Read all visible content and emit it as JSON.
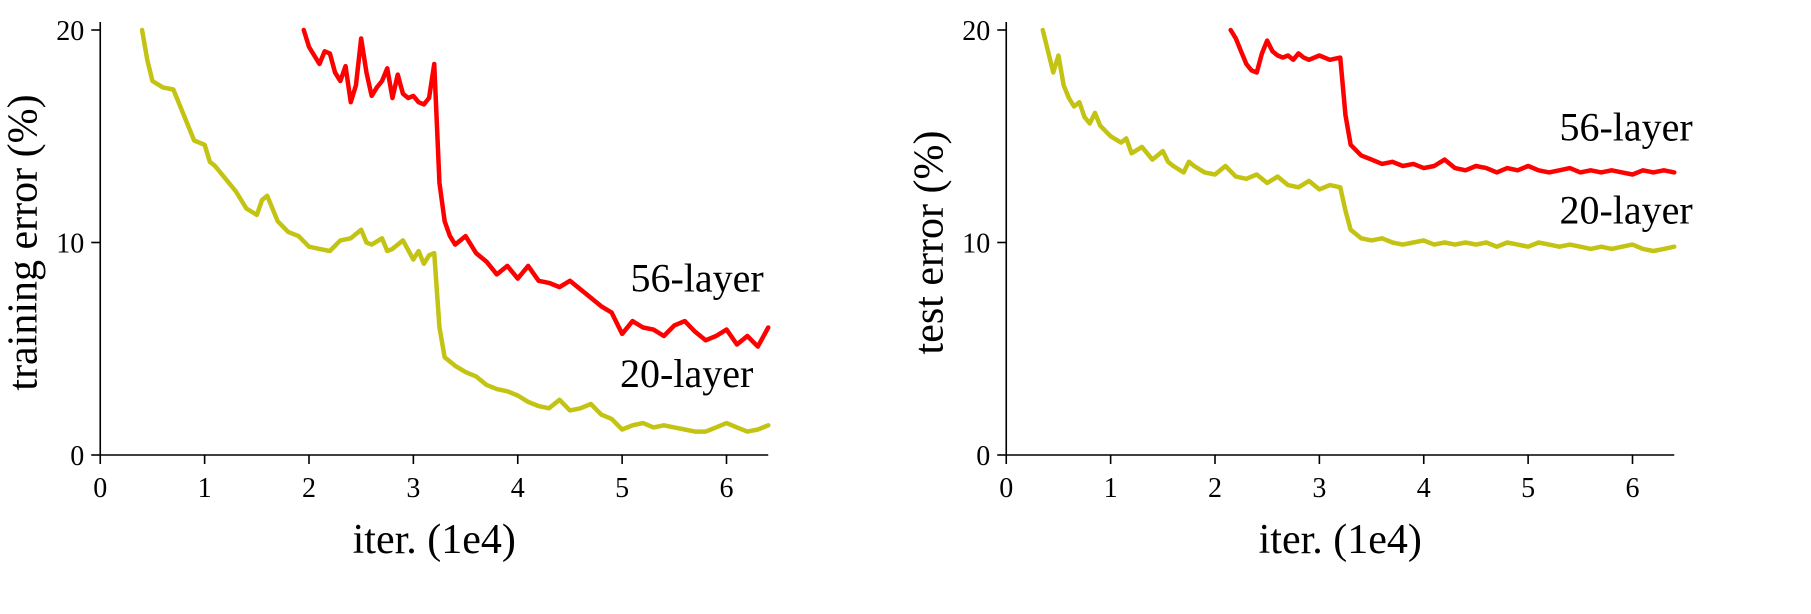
{
  "figure": {
    "background": "#ffffff",
    "text_color": "#000000"
  },
  "chart_data": [
    {
      "type": "line",
      "title": "",
      "xlabel": "iter. (1e4)",
      "ylabel": "training error (%)",
      "xlim": [
        0,
        6.4
      ],
      "ylim": [
        0,
        20
      ],
      "xticks": [
        0,
        1,
        2,
        3,
        4,
        5,
        6
      ],
      "yticks": [
        0,
        10,
        20
      ],
      "grid": false,
      "legend_position": "none",
      "series": [
        {
          "name": "56-layer",
          "color": "#ff0000",
          "points": [
            [
              1.95,
              20
            ],
            [
              2.0,
              19.2
            ],
            [
              2.05,
              18.8
            ],
            [
              2.1,
              18.4
            ],
            [
              2.15,
              19.0
            ],
            [
              2.2,
              18.9
            ],
            [
              2.25,
              18.0
            ],
            [
              2.3,
              17.6
            ],
            [
              2.35,
              18.3
            ],
            [
              2.4,
              16.6
            ],
            [
              2.45,
              17.4
            ],
            [
              2.5,
              19.6
            ],
            [
              2.55,
              18.0
            ],
            [
              2.6,
              16.9
            ],
            [
              2.65,
              17.3
            ],
            [
              2.7,
              17.6
            ],
            [
              2.75,
              18.2
            ],
            [
              2.8,
              16.8
            ],
            [
              2.85,
              17.9
            ],
            [
              2.9,
              17.0
            ],
            [
              2.95,
              16.8
            ],
            [
              3.0,
              16.9
            ],
            [
              3.05,
              16.6
            ],
            [
              3.1,
              16.5
            ],
            [
              3.15,
              16.8
            ],
            [
              3.2,
              18.4
            ],
            [
              3.25,
              12.8
            ],
            [
              3.3,
              11.0
            ],
            [
              3.35,
              10.3
            ],
            [
              3.4,
              9.9
            ],
            [
              3.5,
              10.3
            ],
            [
              3.6,
              9.5
            ],
            [
              3.7,
              9.1
            ],
            [
              3.8,
              8.5
            ],
            [
              3.9,
              8.9
            ],
            [
              4.0,
              8.3
            ],
            [
              4.1,
              8.9
            ],
            [
              4.2,
              8.2
            ],
            [
              4.3,
              8.1
            ],
            [
              4.4,
              7.9
            ],
            [
              4.5,
              8.2
            ],
            [
              4.6,
              7.8
            ],
            [
              4.7,
              7.4
            ],
            [
              4.8,
              7.0
            ],
            [
              4.9,
              6.7
            ],
            [
              5.0,
              5.7
            ],
            [
              5.1,
              6.3
            ],
            [
              5.2,
              6.0
            ],
            [
              5.3,
              5.9
            ],
            [
              5.4,
              5.6
            ],
            [
              5.5,
              6.1
            ],
            [
              5.6,
              6.3
            ],
            [
              5.7,
              5.8
            ],
            [
              5.8,
              5.4
            ],
            [
              5.9,
              5.6
            ],
            [
              6.0,
              5.9
            ],
            [
              6.1,
              5.2
            ],
            [
              6.2,
              5.6
            ],
            [
              6.3,
              5.1
            ],
            [
              6.4,
              6.0
            ]
          ]
        },
        {
          "name": "20-layer",
          "color": "#c3c314",
          "points": [
            [
              0.4,
              20
            ],
            [
              0.45,
              18.6
            ],
            [
              0.5,
              17.6
            ],
            [
              0.6,
              17.3
            ],
            [
              0.7,
              17.2
            ],
            [
              0.8,
              16.0
            ],
            [
              0.9,
              14.8
            ],
            [
              1.0,
              14.6
            ],
            [
              1.05,
              13.8
            ],
            [
              1.1,
              13.6
            ],
            [
              1.2,
              13.0
            ],
            [
              1.3,
              12.4
            ],
            [
              1.4,
              11.6
            ],
            [
              1.5,
              11.3
            ],
            [
              1.55,
              12.0
            ],
            [
              1.6,
              12.2
            ],
            [
              1.7,
              11.0
            ],
            [
              1.8,
              10.5
            ],
            [
              1.9,
              10.3
            ],
            [
              2.0,
              9.8
            ],
            [
              2.1,
              9.7
            ],
            [
              2.2,
              9.6
            ],
            [
              2.3,
              10.1
            ],
            [
              2.4,
              10.2
            ],
            [
              2.5,
              10.6
            ],
            [
              2.55,
              10.0
            ],
            [
              2.6,
              9.9
            ],
            [
              2.7,
              10.2
            ],
            [
              2.75,
              9.6
            ],
            [
              2.8,
              9.7
            ],
            [
              2.9,
              10.1
            ],
            [
              3.0,
              9.2
            ],
            [
              3.05,
              9.6
            ],
            [
              3.1,
              9.0
            ],
            [
              3.15,
              9.4
            ],
            [
              3.2,
              9.5
            ],
            [
              3.25,
              6.0
            ],
            [
              3.3,
              4.6
            ],
            [
              3.4,
              4.2
            ],
            [
              3.5,
              3.9
            ],
            [
              3.6,
              3.7
            ],
            [
              3.7,
              3.3
            ],
            [
              3.8,
              3.1
            ],
            [
              3.9,
              3.0
            ],
            [
              4.0,
              2.8
            ],
            [
              4.1,
              2.5
            ],
            [
              4.2,
              2.3
            ],
            [
              4.3,
              2.2
            ],
            [
              4.4,
              2.6
            ],
            [
              4.5,
              2.1
            ],
            [
              4.6,
              2.2
            ],
            [
              4.7,
              2.4
            ],
            [
              4.8,
              1.9
            ],
            [
              4.9,
              1.7
            ],
            [
              5.0,
              1.2
            ],
            [
              5.1,
              1.4
            ],
            [
              5.2,
              1.5
            ],
            [
              5.3,
              1.3
            ],
            [
              5.4,
              1.4
            ],
            [
              5.5,
              1.3
            ],
            [
              5.6,
              1.2
            ],
            [
              5.7,
              1.1
            ],
            [
              5.8,
              1.1
            ],
            [
              5.9,
              1.3
            ],
            [
              6.0,
              1.5
            ],
            [
              6.1,
              1.3
            ],
            [
              6.2,
              1.1
            ],
            [
              6.3,
              1.2
            ],
            [
              6.4,
              1.4
            ]
          ]
        }
      ],
      "annotations": [
        {
          "text": "56-layer",
          "x": 5.08,
          "y": 7.7
        },
        {
          "text": "20-layer",
          "x": 4.98,
          "y": 3.2
        }
      ]
    },
    {
      "type": "line",
      "title": "",
      "xlabel": "iter. (1e4)",
      "ylabel": "test error (%)",
      "xlim": [
        0,
        6.4
      ],
      "ylim": [
        0,
        20
      ],
      "xticks": [
        0,
        1,
        2,
        3,
        4,
        5,
        6
      ],
      "yticks": [
        0,
        10,
        20
      ],
      "grid": false,
      "legend_position": "none",
      "series": [
        {
          "name": "56-layer",
          "color": "#ff0000",
          "points": [
            [
              2.15,
              20
            ],
            [
              2.2,
              19.6
            ],
            [
              2.25,
              19.0
            ],
            [
              2.3,
              18.4
            ],
            [
              2.35,
              18.1
            ],
            [
              2.4,
              18.0
            ],
            [
              2.45,
              18.9
            ],
            [
              2.5,
              19.5
            ],
            [
              2.55,
              19.0
            ],
            [
              2.6,
              18.8
            ],
            [
              2.65,
              18.7
            ],
            [
              2.7,
              18.8
            ],
            [
              2.75,
              18.6
            ],
            [
              2.8,
              18.9
            ],
            [
              2.85,
              18.7
            ],
            [
              2.9,
              18.6
            ],
            [
              3.0,
              18.8
            ],
            [
              3.1,
              18.6
            ],
            [
              3.2,
              18.7
            ],
            [
              3.25,
              16.0
            ],
            [
              3.3,
              14.6
            ],
            [
              3.4,
              14.1
            ],
            [
              3.5,
              13.9
            ],
            [
              3.6,
              13.7
            ],
            [
              3.7,
              13.8
            ],
            [
              3.8,
              13.6
            ],
            [
              3.9,
              13.7
            ],
            [
              4.0,
              13.5
            ],
            [
              4.1,
              13.6
            ],
            [
              4.2,
              13.9
            ],
            [
              4.3,
              13.5
            ],
            [
              4.4,
              13.4
            ],
            [
              4.5,
              13.6
            ],
            [
              4.6,
              13.5
            ],
            [
              4.7,
              13.3
            ],
            [
              4.8,
              13.5
            ],
            [
              4.9,
              13.4
            ],
            [
              5.0,
              13.6
            ],
            [
              5.1,
              13.4
            ],
            [
              5.2,
              13.3
            ],
            [
              5.3,
              13.4
            ],
            [
              5.4,
              13.5
            ],
            [
              5.5,
              13.3
            ],
            [
              5.6,
              13.4
            ],
            [
              5.7,
              13.3
            ],
            [
              5.8,
              13.4
            ],
            [
              5.9,
              13.3
            ],
            [
              6.0,
              13.2
            ],
            [
              6.1,
              13.4
            ],
            [
              6.2,
              13.3
            ],
            [
              6.3,
              13.4
            ],
            [
              6.4,
              13.3
            ]
          ]
        },
        {
          "name": "20-layer",
          "color": "#c3c314",
          "points": [
            [
              0.35,
              20
            ],
            [
              0.4,
              19.0
            ],
            [
              0.45,
              18.0
            ],
            [
              0.5,
              18.8
            ],
            [
              0.55,
              17.4
            ],
            [
              0.6,
              16.8
            ],
            [
              0.65,
              16.4
            ],
            [
              0.7,
              16.6
            ],
            [
              0.75,
              15.9
            ],
            [
              0.8,
              15.6
            ],
            [
              0.85,
              16.1
            ],
            [
              0.9,
              15.5
            ],
            [
              1.0,
              15.0
            ],
            [
              1.1,
              14.7
            ],
            [
              1.15,
              14.9
            ],
            [
              1.2,
              14.2
            ],
            [
              1.3,
              14.5
            ],
            [
              1.4,
              13.9
            ],
            [
              1.5,
              14.3
            ],
            [
              1.55,
              13.8
            ],
            [
              1.6,
              13.6
            ],
            [
              1.7,
              13.3
            ],
            [
              1.75,
              13.8
            ],
            [
              1.8,
              13.6
            ],
            [
              1.9,
              13.3
            ],
            [
              2.0,
              13.2
            ],
            [
              2.1,
              13.6
            ],
            [
              2.2,
              13.1
            ],
            [
              2.3,
              13.0
            ],
            [
              2.4,
              13.2
            ],
            [
              2.5,
              12.8
            ],
            [
              2.6,
              13.1
            ],
            [
              2.7,
              12.7
            ],
            [
              2.8,
              12.6
            ],
            [
              2.9,
              12.9
            ],
            [
              3.0,
              12.5
            ],
            [
              3.1,
              12.7
            ],
            [
              3.2,
              12.6
            ],
            [
              3.25,
              11.5
            ],
            [
              3.3,
              10.6
            ],
            [
              3.4,
              10.2
            ],
            [
              3.5,
              10.1
            ],
            [
              3.6,
              10.2
            ],
            [
              3.7,
              10.0
            ],
            [
              3.8,
              9.9
            ],
            [
              3.9,
              10.0
            ],
            [
              4.0,
              10.1
            ],
            [
              4.1,
              9.9
            ],
            [
              4.2,
              10.0
            ],
            [
              4.3,
              9.9
            ],
            [
              4.4,
              10.0
            ],
            [
              4.5,
              9.9
            ],
            [
              4.6,
              10.0
            ],
            [
              4.7,
              9.8
            ],
            [
              4.8,
              10.0
            ],
            [
              4.9,
              9.9
            ],
            [
              5.0,
              9.8
            ],
            [
              5.1,
              10.0
            ],
            [
              5.2,
              9.9
            ],
            [
              5.3,
              9.8
            ],
            [
              5.4,
              9.9
            ],
            [
              5.5,
              9.8
            ],
            [
              5.6,
              9.7
            ],
            [
              5.7,
              9.8
            ],
            [
              5.8,
              9.7
            ],
            [
              5.9,
              9.8
            ],
            [
              6.0,
              9.9
            ],
            [
              6.1,
              9.7
            ],
            [
              6.2,
              9.6
            ],
            [
              6.3,
              9.7
            ],
            [
              6.4,
              9.8
            ]
          ]
        }
      ],
      "annotations": [
        {
          "text": "56-layer",
          "x": 5.3,
          "y": 14.8
        },
        {
          "text": "20-layer",
          "x": 5.3,
          "y": 10.9
        }
      ]
    }
  ]
}
